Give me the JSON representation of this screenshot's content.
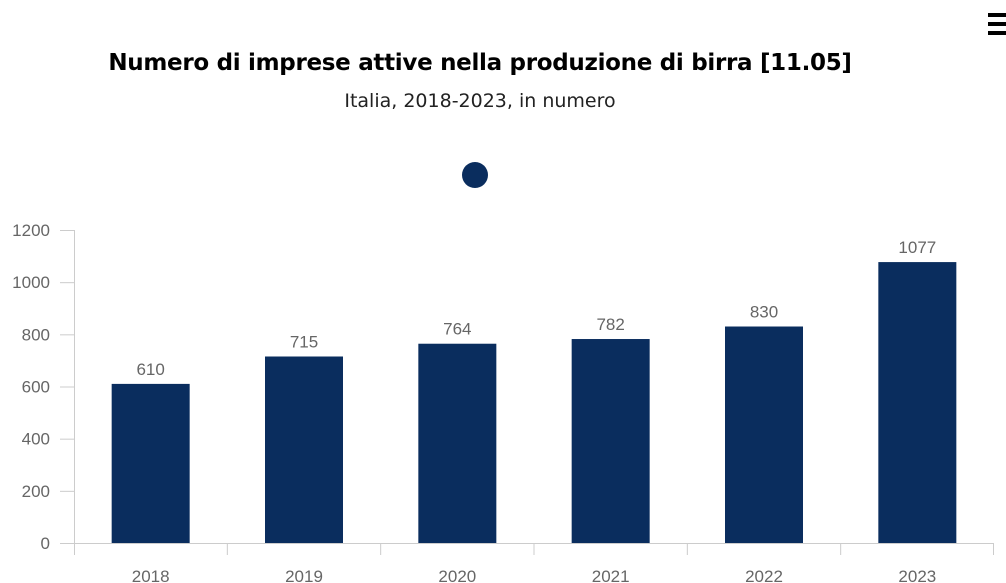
{
  "header": {
    "title": "Numero di imprese attive nella produzione di birra [11.05]",
    "subtitle": "Italia, 2018-2023, in numero"
  },
  "icons": {
    "menu": "hamburger-menu-icon",
    "legend": "legend-dot-icon"
  },
  "colors": {
    "bar": "#0a2d5e",
    "axis": "#cccccc",
    "text": "#666666"
  },
  "chart_data": {
    "type": "bar",
    "title": "Numero di imprese attive nella produzione di birra [11.05]",
    "subtitle": "Italia, 2018-2023, in numero",
    "categories": [
      "2018",
      "2019",
      "2020",
      "2021",
      "2022",
      "2023"
    ],
    "series": [
      {
        "values": [
          610,
          715,
          764,
          782,
          830,
          1077
        ]
      }
    ],
    "ylim": [
      0,
      1200
    ],
    "yticks": [
      0,
      200,
      400,
      600,
      800,
      1000,
      1200
    ],
    "xlabel": "",
    "ylabel": "",
    "grid": false,
    "legend": "top-center",
    "data_labels": true
  }
}
